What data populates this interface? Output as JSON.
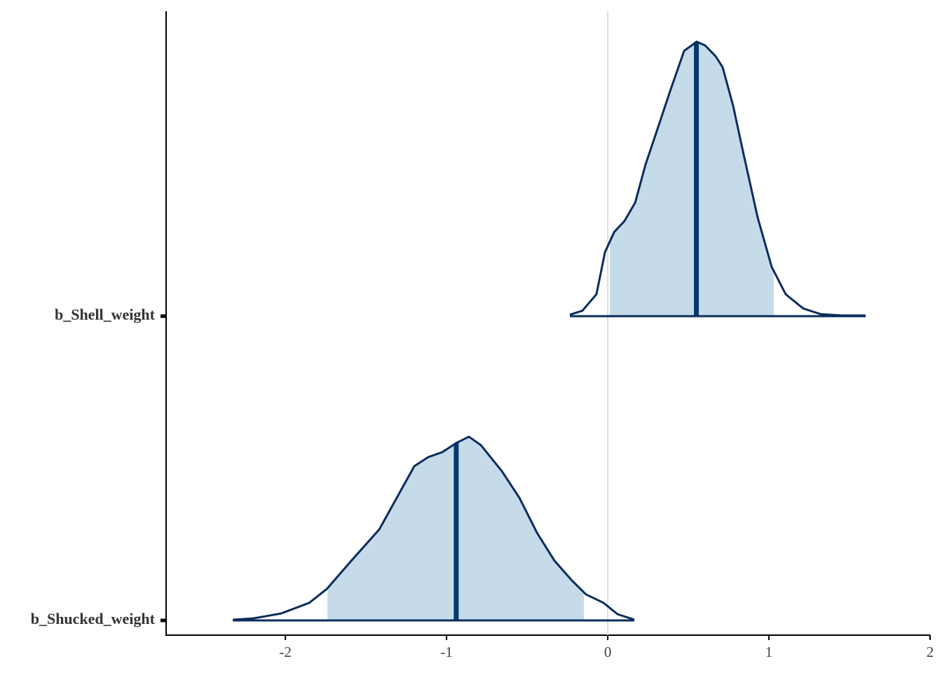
{
  "chart_data": {
    "type": "areas",
    "xlim": [
      -2.74,
      2.0
    ],
    "xticks": [
      -2,
      -1,
      0,
      1,
      2
    ],
    "vline": 0,
    "fill_color": "#c6dbea",
    "line_color": "#0b2d5c",
    "median_color": "#03396c",
    "vline_color": "#dddddd",
    "series": [
      {
        "name": "b_Shell_weight",
        "x": [
          -0.235,
          -0.157,
          -0.07,
          -0.017,
          0.04,
          0.104,
          0.17,
          0.235,
          0.3,
          0.387,
          0.474,
          0.552,
          0.604,
          0.67,
          0.713,
          0.778,
          0.843,
          0.93,
          1.017,
          1.104,
          1.213,
          1.322,
          1.452,
          1.6
        ],
        "density": [
          0.008,
          0.03,
          0.12,
          0.35,
          0.46,
          0.52,
          0.62,
          0.83,
          1.0,
          1.23,
          1.45,
          1.5,
          1.48,
          1.42,
          1.36,
          1.15,
          0.885,
          0.54,
          0.27,
          0.12,
          0.042,
          0.011,
          0.004,
          0.004
        ],
        "median": 0.55,
        "interval": [
          0.013,
          1.03
        ]
      },
      {
        "name": "b_Shucked_weight",
        "x": [
          -2.326,
          -2.2,
          -2.026,
          -1.852,
          -1.743,
          -1.591,
          -1.417,
          -1.309,
          -1.2,
          -1.113,
          -1.026,
          -0.939,
          -0.861,
          -0.787,
          -0.657,
          -0.548,
          -0.439,
          -0.33,
          -0.222,
          -0.135,
          -0.026,
          0.061,
          0.165
        ],
        "density": [
          0.004,
          0.011,
          0.038,
          0.096,
          0.172,
          0.326,
          0.498,
          0.67,
          0.843,
          0.893,
          0.92,
          0.97,
          1.004,
          0.958,
          0.816,
          0.67,
          0.479,
          0.326,
          0.218,
          0.142,
          0.096,
          0.034,
          0.004
        ],
        "median": -0.94,
        "interval": [
          -1.739,
          -0.148
        ]
      }
    ]
  }
}
